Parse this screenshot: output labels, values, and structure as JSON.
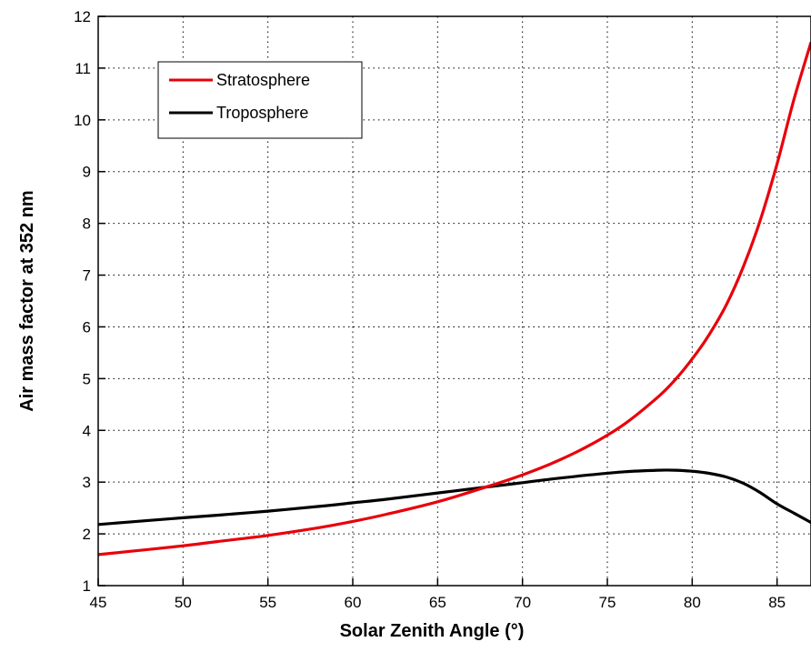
{
  "chart_data": {
    "type": "line",
    "title": "",
    "xlabel": "Solar Zenith Angle (°)",
    "ylabel": "Air mass factor at 352 nm",
    "xlim": [
      45,
      87
    ],
    "ylim": [
      1,
      12
    ],
    "xticks": [
      45,
      50,
      55,
      60,
      65,
      70,
      75,
      80,
      85
    ],
    "yticks": [
      1,
      2,
      3,
      4,
      5,
      6,
      7,
      8,
      9,
      10,
      11,
      12
    ],
    "grid": true,
    "legend_position": "top-left",
    "series": [
      {
        "name": "Stratosphere",
        "color": "#e8000b",
        "x": [
          45,
          48,
          50,
          52,
          55,
          58,
          60,
          62,
          65,
          68,
          70,
          72,
          74,
          76,
          78,
          79,
          80,
          81,
          82,
          83,
          84,
          85,
          86,
          87
        ],
        "y": [
          1.6,
          1.7,
          1.77,
          1.85,
          1.97,
          2.12,
          2.24,
          2.38,
          2.62,
          2.92,
          3.14,
          3.4,
          3.72,
          4.12,
          4.65,
          4.98,
          5.38,
          5.85,
          6.42,
          7.15,
          8.05,
          9.15,
          10.4,
          11.5
        ]
      },
      {
        "name": "Troposphere",
        "color": "#000000",
        "x": [
          45,
          48,
          50,
          52,
          55,
          58,
          60,
          62,
          65,
          68,
          70,
          72,
          74,
          76,
          78,
          79,
          80,
          81,
          82,
          83,
          84,
          85,
          86,
          87
        ],
        "y": [
          2.18,
          2.26,
          2.31,
          2.36,
          2.44,
          2.53,
          2.6,
          2.67,
          2.79,
          2.91,
          2.99,
          3.07,
          3.14,
          3.2,
          3.23,
          3.23,
          3.21,
          3.17,
          3.1,
          2.98,
          2.8,
          2.58,
          2.4,
          2.22
        ]
      }
    ]
  }
}
